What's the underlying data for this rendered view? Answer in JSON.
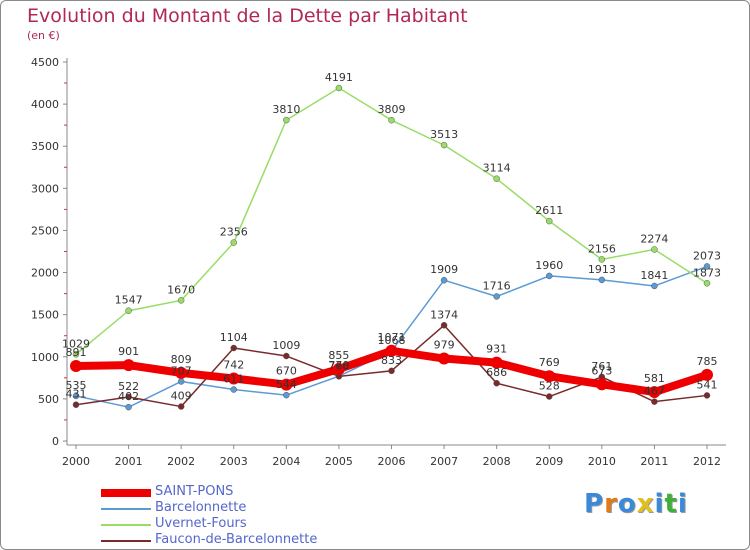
{
  "header": {
    "title": "Evolution du Montant de la Dette par Habitant",
    "unit": "(en €)"
  },
  "logo": {
    "text": "Proxiti",
    "colors": [
      "#3b8ad9",
      "#e07a1a",
      "#3b8ad9",
      "#e0c020",
      "#3b8ad9",
      "#3fae3a",
      "#3b8ad9"
    ]
  },
  "chart_data": {
    "type": "line",
    "title": "Evolution du Montant de la Dette par Habitant",
    "subtitle": "(en €)",
    "xlabel": "",
    "ylabel": "",
    "ylim": [
      0,
      4500
    ],
    "yticks": [
      0,
      500,
      1000,
      1500,
      2000,
      2500,
      3000,
      3500,
      4000,
      4500
    ],
    "grid": false,
    "legend": "bottom-left",
    "categories": [
      "2000",
      "2001",
      "2002",
      "2003",
      "2004",
      "2005",
      "2006",
      "2007",
      "2008",
      "2009",
      "2010",
      "2011",
      "2012"
    ],
    "series": [
      {
        "name": "SAINT-PONS",
        "color": "#ee0000",
        "values": [
          891,
          901,
          809,
          742,
          670,
          855,
          1071,
          979,
          931,
          769,
          673,
          581,
          785
        ]
      },
      {
        "name": "Barcelonnette",
        "color": "#5b9bd5",
        "values": [
          535,
          402,
          707,
          611,
          544,
          770,
          1068,
          1909,
          1716,
          1960,
          1913,
          1841,
          2073
        ]
      },
      {
        "name": "Uvernet-Fours",
        "color": "#99dd66",
        "values": [
          1029,
          1547,
          1670,
          2356,
          3810,
          4191,
          3809,
          3513,
          3114,
          2611,
          2156,
          2274,
          1873
        ]
      },
      {
        "name": "Faucon-de-Barcelonnette",
        "color": "#7a2a2a",
        "values": [
          431,
          522,
          409,
          1104,
          1009,
          768,
          833,
          1374,
          686,
          528,
          761,
          467,
          541
        ]
      }
    ]
  }
}
